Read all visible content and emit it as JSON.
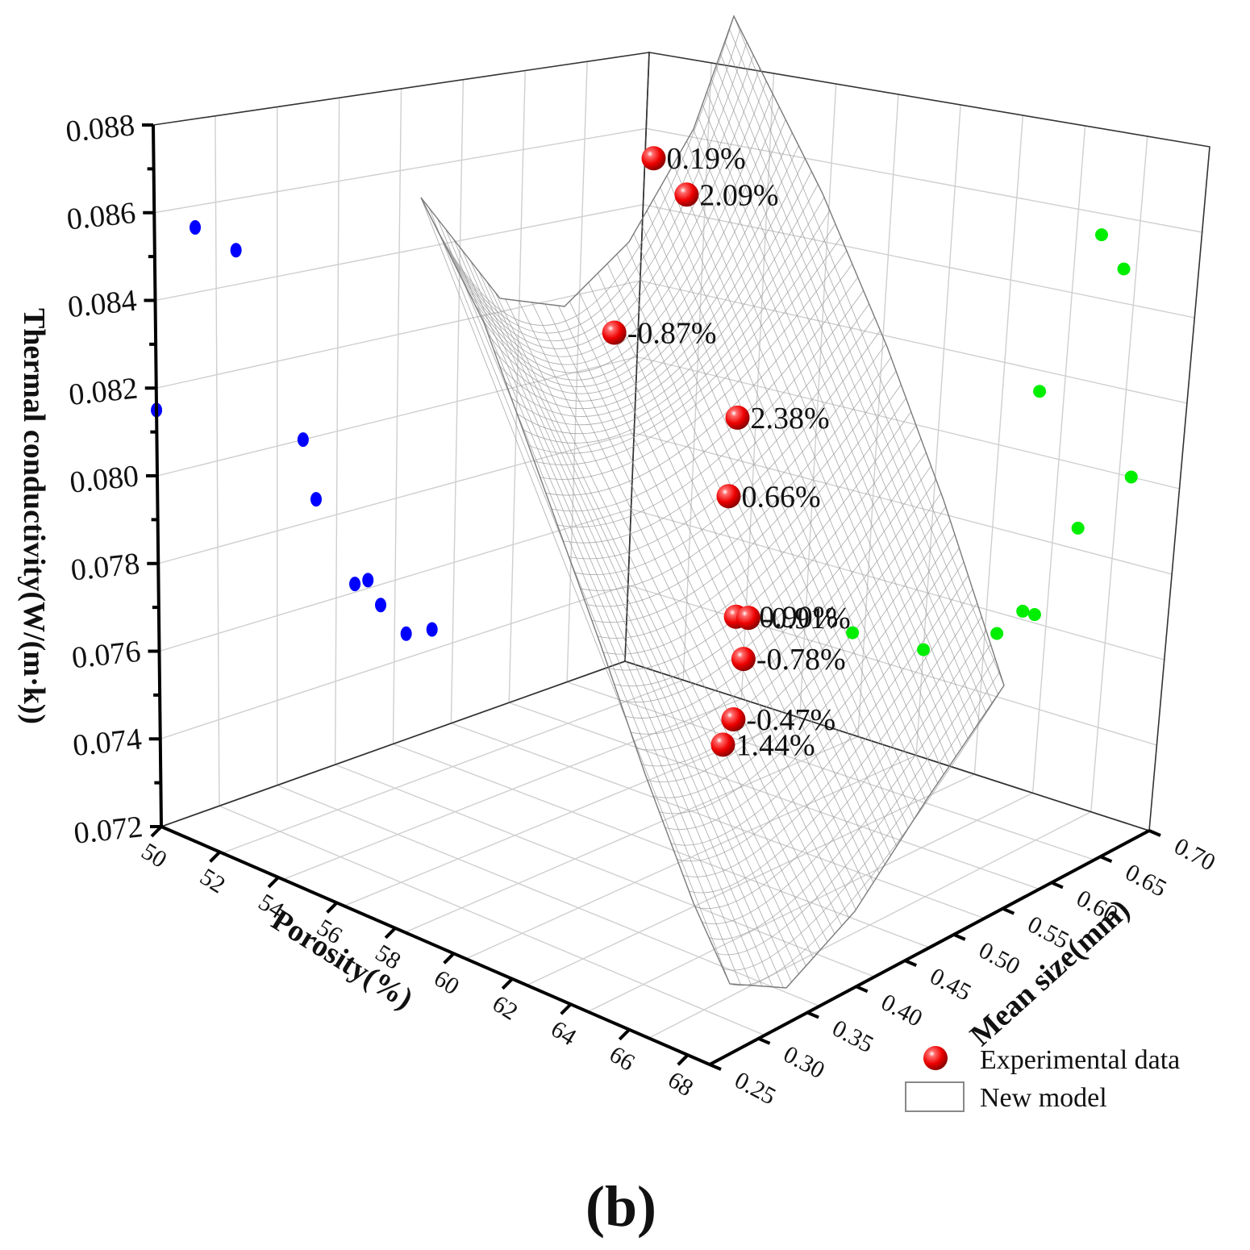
{
  "chart_data": {
    "type": "scatter3d_surface",
    "caption": "(b)",
    "zlabel": "Thermal conductivity(W/(m·k))",
    "xlabel": "Porosity(%)",
    "ylabel": "Mean size(mm)",
    "z_ticks": [
      "0.072",
      "0.074",
      "0.076",
      "0.078",
      "0.080",
      "0.082",
      "0.084",
      "0.086",
      "0.088"
    ],
    "x_ticks": [
      "50",
      "52",
      "54",
      "56",
      "58",
      "60",
      "62",
      "64",
      "66",
      "68"
    ],
    "y_ticks": [
      "0.25",
      "0.30",
      "0.35",
      "0.40",
      "0.45",
      "0.50",
      "0.55",
      "0.60",
      "0.65",
      "0.70"
    ],
    "zlim": [
      0.072,
      0.088
    ],
    "xlim": [
      50,
      69
    ],
    "ylim": [
      0.25,
      0.7
    ],
    "experimental_points": [
      {
        "label": "0.19%",
        "porosity": 58.5,
        "mean_size": 0.62,
        "conductivity": 0.0855
      },
      {
        "label": "2.09%",
        "porosity": 60.0,
        "mean_size": 0.64,
        "conductivity": 0.0848
      },
      {
        "label": "-0.87%",
        "porosity": 57.0,
        "mean_size": 0.58,
        "conductivity": 0.0815
      },
      {
        "label": "2.38%",
        "porosity": 62.5,
        "mean_size": 0.66,
        "conductivity": 0.08
      },
      {
        "label": "0.66%",
        "porosity": 63.0,
        "mean_size": 0.62,
        "conductivity": 0.0785
      },
      {
        "label": "-0.90%",
        "porosity": 64.5,
        "mean_size": 0.58,
        "conductivity": 0.0762
      },
      {
        "label": "-0.91%",
        "porosity": 65.0,
        "mean_size": 0.59,
        "conductivity": 0.0762
      },
      {
        "label": "-0.78%",
        "porosity": 65.5,
        "mean_size": 0.56,
        "conductivity": 0.0755
      },
      {
        "label": "-0.47%",
        "porosity": 66.5,
        "mean_size": 0.5,
        "conductivity": 0.0746
      },
      {
        "label": "1.44%",
        "porosity": 67.5,
        "mean_size": 0.44,
        "conductivity": 0.0745
      }
    ],
    "legend": [
      {
        "name": "Experimental data",
        "marker": "red-sphere"
      },
      {
        "name": "New model",
        "marker": "surface"
      }
    ],
    "legend_position": "bottom-right"
  },
  "colors": {
    "experimental": "#ff0000",
    "projection_porosity": "#0000ff",
    "projection_size": "#00ee00",
    "surface": "#9a9a9a"
  }
}
